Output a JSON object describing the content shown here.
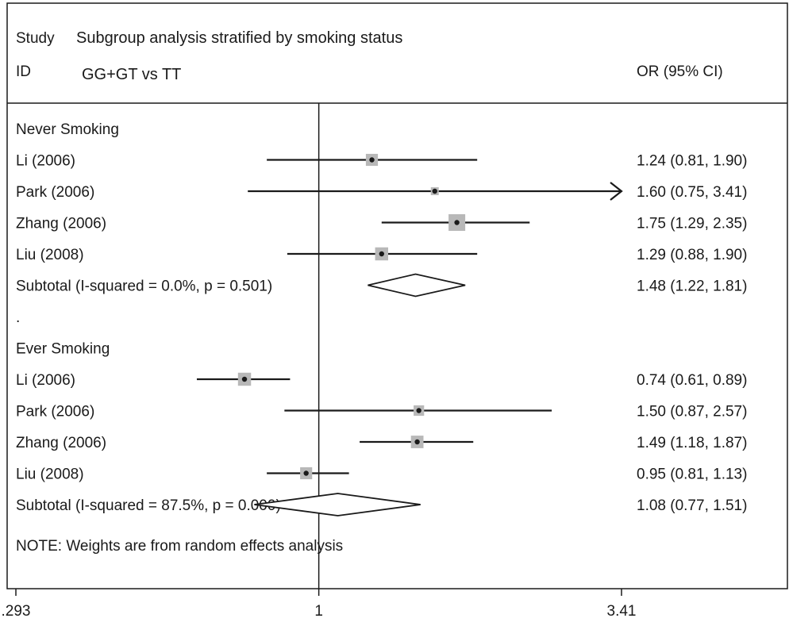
{
  "chart_data": {
    "type": "forest",
    "header": {
      "study_label": "Study",
      "id_label": "ID",
      "title": "Subgroup analysis stratified by smoking status",
      "subtitle": "GG+GT vs TT",
      "or_label": "OR (95% CI)"
    },
    "scale": "log",
    "xlim": [
      0.293,
      3.41
    ],
    "null_line": 1,
    "x_ticks": [
      ".293",
      "1",
      "3.41"
    ],
    "rows": [
      {
        "kind": "group",
        "label": "Never Smoking"
      },
      {
        "kind": "study",
        "label": "Li (2006)",
        "or": 1.24,
        "lo": 0.81,
        "hi": 1.9,
        "weight": 0.55,
        "text": "1.24 (0.81, 1.90)"
      },
      {
        "kind": "study",
        "label": "Park (2006)",
        "or": 1.6,
        "lo": 0.75,
        "hi": 3.41,
        "weight": 0.15,
        "text": "1.60 (0.75, 3.41)",
        "arrow": true
      },
      {
        "kind": "study",
        "label": "Zhang (2006)",
        "or": 1.75,
        "lo": 1.29,
        "hi": 2.35,
        "weight": 1.0,
        "text": "1.75 (1.29, 2.35)"
      },
      {
        "kind": "study",
        "label": "Liu (2008)",
        "or": 1.29,
        "lo": 0.88,
        "hi": 1.9,
        "weight": 0.65,
        "text": "1.29 (0.88, 1.90)"
      },
      {
        "kind": "subtotal",
        "label": "Subtotal  (I-squared = 0.0%, p = 0.501)",
        "or": 1.48,
        "lo": 1.22,
        "hi": 1.81,
        "text": "1.48 (1.22, 1.81)"
      },
      {
        "kind": "spacer",
        "label": "."
      },
      {
        "kind": "group",
        "label": "Ever Smoking"
      },
      {
        "kind": "study",
        "label": "Li (2006)",
        "or": 0.74,
        "lo": 0.61,
        "hi": 0.89,
        "weight": 0.65,
        "text": "0.74 (0.61, 0.89)"
      },
      {
        "kind": "study",
        "label": "Park (2006)",
        "or": 1.5,
        "lo": 0.87,
        "hi": 2.57,
        "weight": 0.4,
        "text": "1.50 (0.87, 2.57)"
      },
      {
        "kind": "study",
        "label": "Zhang (2006)",
        "or": 1.49,
        "lo": 1.18,
        "hi": 1.87,
        "weight": 0.6,
        "text": "1.49 (1.18, 1.87)"
      },
      {
        "kind": "study",
        "label": "Liu (2008)",
        "or": 0.95,
        "lo": 0.81,
        "hi": 1.13,
        "weight": 0.55,
        "text": "0.95 (0.81, 1.13)"
      },
      {
        "kind": "subtotal",
        "label": "Subtotal  (I-squared = 87.5%, p = 0.000)",
        "or": 1.08,
        "lo": 0.77,
        "hi": 1.51,
        "text": "1.08 (0.77, 1.51)"
      }
    ],
    "note": "NOTE: Weights are from random effects analysis",
    "colors": {
      "line": "#1a1a1a",
      "weight_box": "#b8b8b8",
      "text": "#1a1a1a",
      "background": "#ffffff"
    }
  }
}
